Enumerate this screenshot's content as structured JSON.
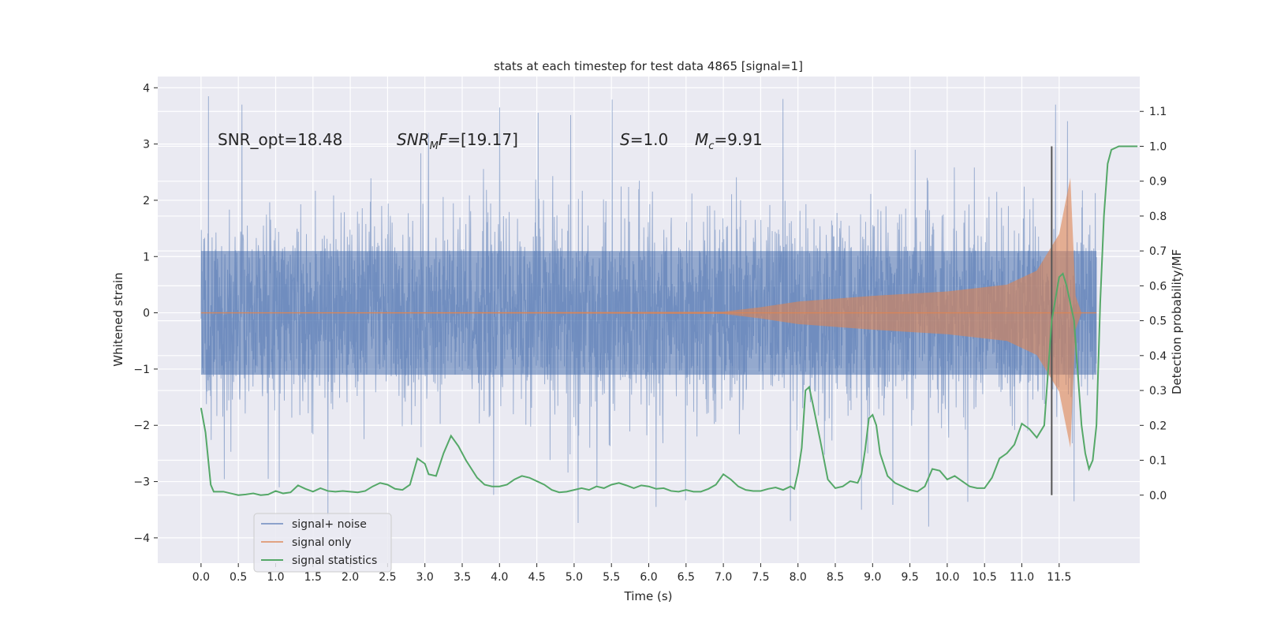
{
  "chart_data": {
    "type": "line",
    "title": "stats at each timestep for test data 4865 [signal=1]",
    "xlabel": "Time (s)",
    "ylabel": "Whitened strain",
    "y2label": "Detection probability/MF",
    "xlim": [
      -0.58,
      12.58
    ],
    "ylim": [
      -4.45,
      4.2
    ],
    "y2lim": [
      -0.195,
      1.2
    ],
    "grid": true,
    "legend_position": "lower-left",
    "x_ticks": [
      "0.0",
      "0.5",
      "1.0",
      "1.5",
      "2.0",
      "2.5",
      "3.0",
      "3.5",
      "4.0",
      "4.5",
      "5.0",
      "5.5",
      "6.0",
      "6.5",
      "7.0",
      "7.5",
      "8.0",
      "8.5",
      "9.0",
      "9.5",
      "10.0",
      "10.5",
      "11.0",
      "11.5"
    ],
    "y_ticks": [
      "4",
      "3",
      "2",
      "1",
      "0",
      "−1",
      "−2",
      "−3",
      "−4"
    ],
    "y2_ticks": [
      "1.1",
      "1.0",
      "0.9",
      "0.8",
      "0.7",
      "0.6",
      "0.5",
      "0.4",
      "0.3",
      "0.2",
      "0.1",
      "0.0"
    ],
    "annotations": {
      "snr_opt": "SNR_opt=18.48",
      "snr_mf": "=[19.17]",
      "s_value": "=1.0",
      "mc_value": "=9.91"
    },
    "vline_x": 11.4,
    "series": [
      {
        "name": "signal+ noise",
        "color": "#4c72b0",
        "opacity": 0.5,
        "x_range": [
          0.0,
          12.0
        ],
        "envelope": {
          "typical_abs": 1.1,
          "peaks": [
            {
              "x": 0.1,
              "y": 3.85
            },
            {
              "x": 0.55,
              "y": 3.7
            },
            {
              "x": 1.05,
              "y": -3.1
            },
            {
              "x": 1.7,
              "y": -3.6
            },
            {
              "x": 3.05,
              "y": 3.2
            },
            {
              "x": 4.0,
              "y": 3.65
            },
            {
              "x": 6.1,
              "y": -3.45
            },
            {
              "x": 7.8,
              "y": 3.8
            },
            {
              "x": 7.9,
              "y": -3.7
            },
            {
              "x": 8.85,
              "y": -3.5
            },
            {
              "x": 9.75,
              "y": -3.8
            },
            {
              "x": 11.45,
              "y": 3.7
            },
            {
              "x": 11.7,
              "y": -3.35
            }
          ]
        }
      },
      {
        "name": "signal only",
        "color": "#dd8452",
        "opacity": 0.6,
        "envelope_points": [
          [
            0.0,
            0.0
          ],
          [
            7.0,
            0.02
          ],
          [
            7.5,
            0.1
          ],
          [
            8.0,
            0.2
          ],
          [
            9.0,
            0.3
          ],
          [
            10.0,
            0.38
          ],
          [
            10.8,
            0.5
          ],
          [
            11.2,
            0.75
          ],
          [
            11.5,
            1.4
          ],
          [
            11.65,
            2.4
          ],
          [
            11.72,
            0.3
          ],
          [
            11.8,
            0.0
          ],
          [
            12.0,
            0.0
          ]
        ]
      },
      {
        "name": "signal statistics",
        "color": "#55a868",
        "points": [
          [
            0.0,
            0.25
          ],
          [
            0.06,
            0.18
          ],
          [
            0.13,
            0.03
          ],
          [
            0.17,
            0.01
          ],
          [
            0.3,
            0.01
          ],
          [
            0.4,
            0.005
          ],
          [
            0.5,
            0.0
          ],
          [
            0.6,
            0.002
          ],
          [
            0.7,
            0.005
          ],
          [
            0.8,
            0.0
          ],
          [
            0.9,
            0.002
          ],
          [
            1.0,
            0.012
          ],
          [
            1.1,
            0.005
          ],
          [
            1.2,
            0.008
          ],
          [
            1.3,
            0.028
          ],
          [
            1.4,
            0.018
          ],
          [
            1.5,
            0.01
          ],
          [
            1.6,
            0.02
          ],
          [
            1.7,
            0.012
          ],
          [
            1.8,
            0.01
          ],
          [
            1.9,
            0.012
          ],
          [
            2.0,
            0.01
          ],
          [
            2.1,
            0.008
          ],
          [
            2.2,
            0.012
          ],
          [
            2.3,
            0.025
          ],
          [
            2.4,
            0.035
          ],
          [
            2.5,
            0.03
          ],
          [
            2.6,
            0.018
          ],
          [
            2.7,
            0.015
          ],
          [
            2.8,
            0.03
          ],
          [
            2.9,
            0.105
          ],
          [
            3.0,
            0.09
          ],
          [
            3.05,
            0.06
          ],
          [
            3.15,
            0.055
          ],
          [
            3.25,
            0.12
          ],
          [
            3.35,
            0.17
          ],
          [
            3.45,
            0.14
          ],
          [
            3.55,
            0.1
          ],
          [
            3.7,
            0.05
          ],
          [
            3.8,
            0.03
          ],
          [
            3.9,
            0.025
          ],
          [
            4.0,
            0.025
          ],
          [
            4.1,
            0.03
          ],
          [
            4.2,
            0.045
          ],
          [
            4.3,
            0.055
          ],
          [
            4.4,
            0.05
          ],
          [
            4.5,
            0.04
          ],
          [
            4.6,
            0.03
          ],
          [
            4.7,
            0.015
          ],
          [
            4.8,
            0.008
          ],
          [
            4.9,
            0.01
          ],
          [
            5.0,
            0.015
          ],
          [
            5.1,
            0.02
          ],
          [
            5.2,
            0.015
          ],
          [
            5.3,
            0.025
          ],
          [
            5.4,
            0.02
          ],
          [
            5.5,
            0.03
          ],
          [
            5.6,
            0.035
          ],
          [
            5.7,
            0.028
          ],
          [
            5.8,
            0.02
          ],
          [
            5.9,
            0.028
          ],
          [
            6.0,
            0.025
          ],
          [
            6.1,
            0.018
          ],
          [
            6.2,
            0.02
          ],
          [
            6.3,
            0.012
          ],
          [
            6.4,
            0.01
          ],
          [
            6.5,
            0.015
          ],
          [
            6.6,
            0.01
          ],
          [
            6.7,
            0.01
          ],
          [
            6.8,
            0.018
          ],
          [
            6.9,
            0.03
          ],
          [
            7.0,
            0.06
          ],
          [
            7.1,
            0.045
          ],
          [
            7.2,
            0.025
          ],
          [
            7.3,
            0.015
          ],
          [
            7.4,
            0.012
          ],
          [
            7.5,
            0.012
          ],
          [
            7.6,
            0.018
          ],
          [
            7.7,
            0.022
          ],
          [
            7.8,
            0.015
          ],
          [
            7.9,
            0.025
          ],
          [
            7.95,
            0.018
          ],
          [
            8.0,
            0.065
          ],
          [
            8.05,
            0.135
          ],
          [
            8.1,
            0.3
          ],
          [
            8.15,
            0.31
          ],
          [
            8.2,
            0.26
          ],
          [
            8.3,
            0.155
          ],
          [
            8.4,
            0.045
          ],
          [
            8.5,
            0.02
          ],
          [
            8.6,
            0.025
          ],
          [
            8.7,
            0.04
          ],
          [
            8.8,
            0.035
          ],
          [
            8.85,
            0.06
          ],
          [
            8.9,
            0.13
          ],
          [
            8.95,
            0.22
          ],
          [
            9.0,
            0.23
          ],
          [
            9.05,
            0.2
          ],
          [
            9.1,
            0.12
          ],
          [
            9.2,
            0.055
          ],
          [
            9.3,
            0.035
          ],
          [
            9.4,
            0.025
          ],
          [
            9.5,
            0.015
          ],
          [
            9.6,
            0.01
          ],
          [
            9.7,
            0.025
          ],
          [
            9.8,
            0.075
          ],
          [
            9.9,
            0.07
          ],
          [
            10.0,
            0.045
          ],
          [
            10.1,
            0.055
          ],
          [
            10.2,
            0.04
          ],
          [
            10.3,
            0.025
          ],
          [
            10.4,
            0.02
          ],
          [
            10.5,
            0.02
          ],
          [
            10.6,
            0.05
          ],
          [
            10.7,
            0.105
          ],
          [
            10.8,
            0.12
          ],
          [
            10.9,
            0.145
          ],
          [
            11.0,
            0.205
          ],
          [
            11.1,
            0.19
          ],
          [
            11.2,
            0.165
          ],
          [
            11.3,
            0.2
          ],
          [
            11.35,
            0.35
          ],
          [
            11.4,
            0.5
          ],
          [
            11.5,
            0.625
          ],
          [
            11.55,
            0.635
          ],
          [
            11.6,
            0.6
          ],
          [
            11.7,
            0.5
          ],
          [
            11.75,
            0.35
          ],
          [
            11.8,
            0.2
          ],
          [
            11.85,
            0.12
          ],
          [
            11.9,
            0.075
          ],
          [
            11.95,
            0.1
          ],
          [
            12.0,
            0.2
          ],
          [
            12.05,
            0.55
          ],
          [
            12.1,
            0.8
          ],
          [
            12.15,
            0.95
          ],
          [
            12.2,
            0.99
          ],
          [
            12.3,
            1.0
          ],
          [
            12.4,
            1.0
          ],
          [
            12.55,
            1.0
          ]
        ]
      }
    ]
  }
}
